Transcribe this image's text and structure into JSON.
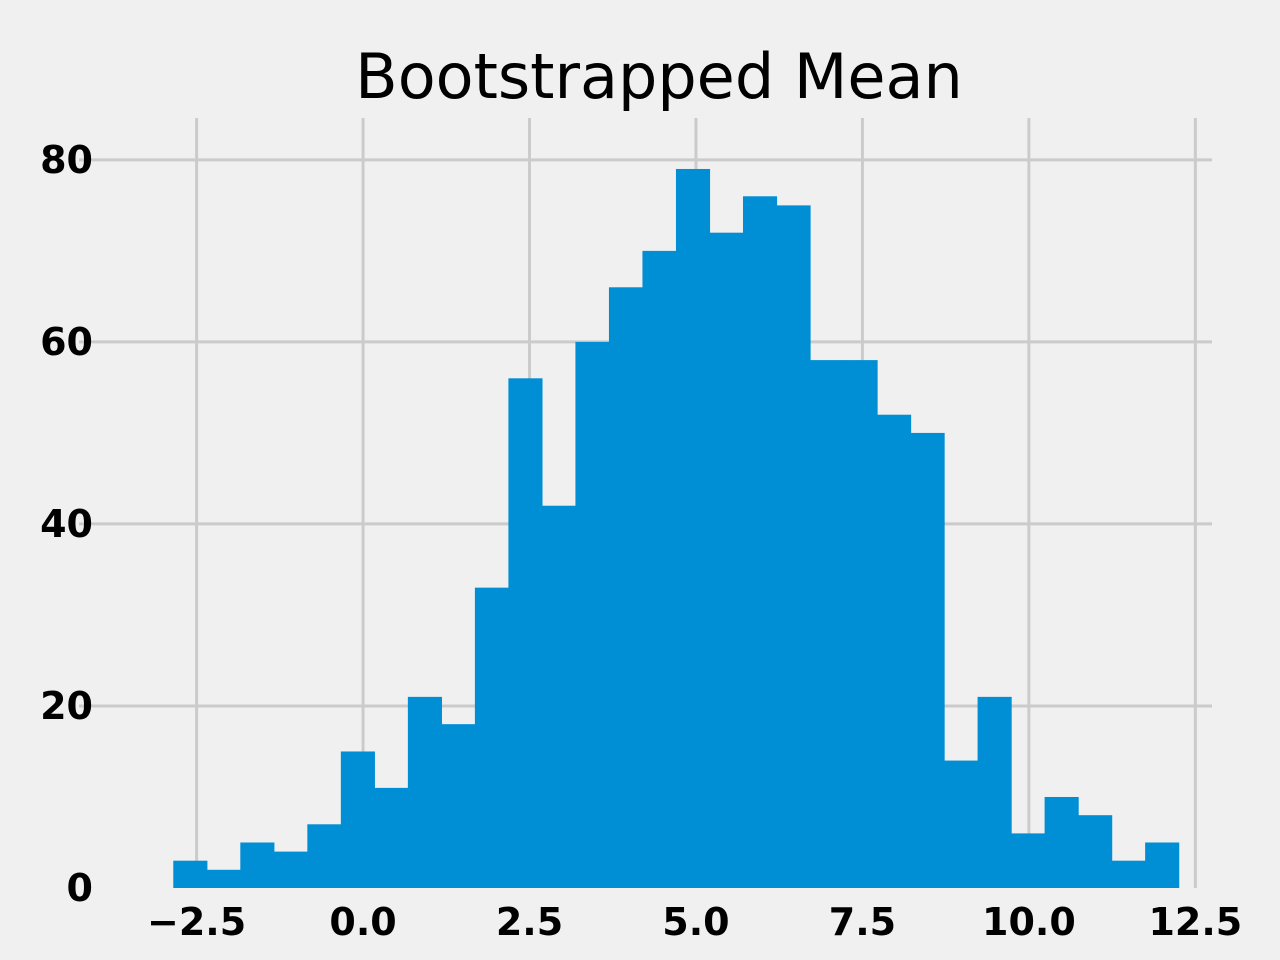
{
  "chart_data": {
    "type": "bar",
    "title": "Bootstrapped Mean",
    "xlabel": "",
    "ylabel": "",
    "bin_start": -2.85,
    "bin_width": 0.5033,
    "counts": [
      3,
      2,
      5,
      4,
      7,
      15,
      11,
      21,
      18,
      33,
      56,
      42,
      60,
      66,
      70,
      79,
      72,
      76,
      75,
      58,
      58,
      52,
      50,
      14,
      21,
      6,
      10,
      8,
      3,
      5
    ],
    "xlim": [
      -3.44,
      12.75
    ],
    "ylim": [
      0,
      84.6
    ],
    "xticks": [
      -2.5,
      0.0,
      2.5,
      5.0,
      7.5,
      10.0,
      12.5
    ],
    "xtick_labels": [
      "−2.5",
      "0.0",
      "2.5",
      "5.0",
      "7.5",
      "10.0",
      "12.5"
    ],
    "yticks": [
      0,
      20,
      40,
      60,
      80
    ],
    "ytick_labels": [
      "0",
      "20",
      "40",
      "60",
      "80"
    ],
    "grid": true,
    "bar_color": "#008fd5",
    "grid_color": "#cbcbcb",
    "background": "#f0f0f0"
  }
}
